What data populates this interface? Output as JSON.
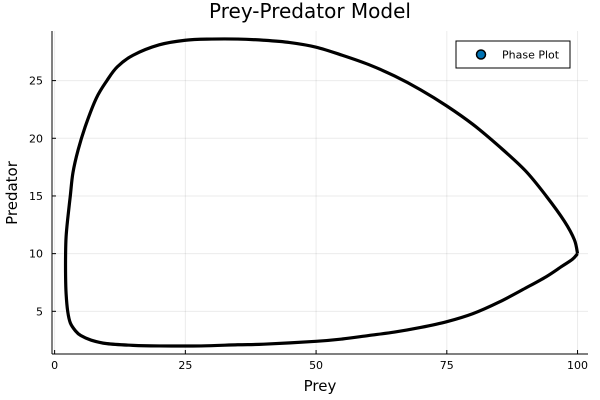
{
  "chart_data": {
    "type": "scatter",
    "title": "Prey-Predator Model",
    "xlabel": "Prey",
    "ylabel": "Predator",
    "xlim": [
      -0.5,
      102
    ],
    "ylim": [
      1.3,
      29.3
    ],
    "xticks": [
      0,
      25,
      50,
      75,
      100
    ],
    "yticks": [
      5,
      10,
      15,
      20,
      25
    ],
    "grid": true,
    "legend": {
      "position": "top-right",
      "entries": [
        "Phase Plot"
      ]
    },
    "series": [
      {
        "name": "Phase Plot",
        "color": "#000000",
        "marker_color": "#0072B2",
        "x": [
          100,
          99.4,
          97.5,
          94,
          90,
          85,
          80,
          75,
          70,
          65,
          60,
          55,
          50,
          45,
          40,
          35,
          30,
          25,
          20,
          15,
          12,
          10,
          8,
          6,
          4.5,
          3.5,
          3,
          2.5,
          2.2,
          2.1,
          2.1,
          2.2,
          2.5,
          3,
          4,
          5,
          7,
          10,
          15,
          20,
          28,
          35,
          40,
          50,
          55,
          60,
          65,
          70,
          75,
          80,
          85,
          90,
          94,
          97,
          99,
          100
        ],
        "y": [
          10,
          11.2,
          12.8,
          15,
          17.2,
          19.3,
          21.2,
          22.8,
          24.2,
          25.4,
          26.4,
          27.2,
          27.9,
          28.3,
          28.5,
          28.6,
          28.6,
          28.5,
          28.1,
          27.2,
          26.2,
          25,
          23.5,
          21.2,
          19,
          17,
          15,
          13,
          11.5,
          10,
          8,
          6.5,
          5,
          4,
          3.3,
          2.9,
          2.5,
          2.2,
          2.05,
          2.0,
          2.0,
          2.1,
          2.15,
          2.4,
          2.6,
          2.9,
          3.2,
          3.6,
          4.1,
          4.8,
          5.8,
          7,
          8,
          8.9,
          9.5,
          10
        ]
      }
    ]
  }
}
